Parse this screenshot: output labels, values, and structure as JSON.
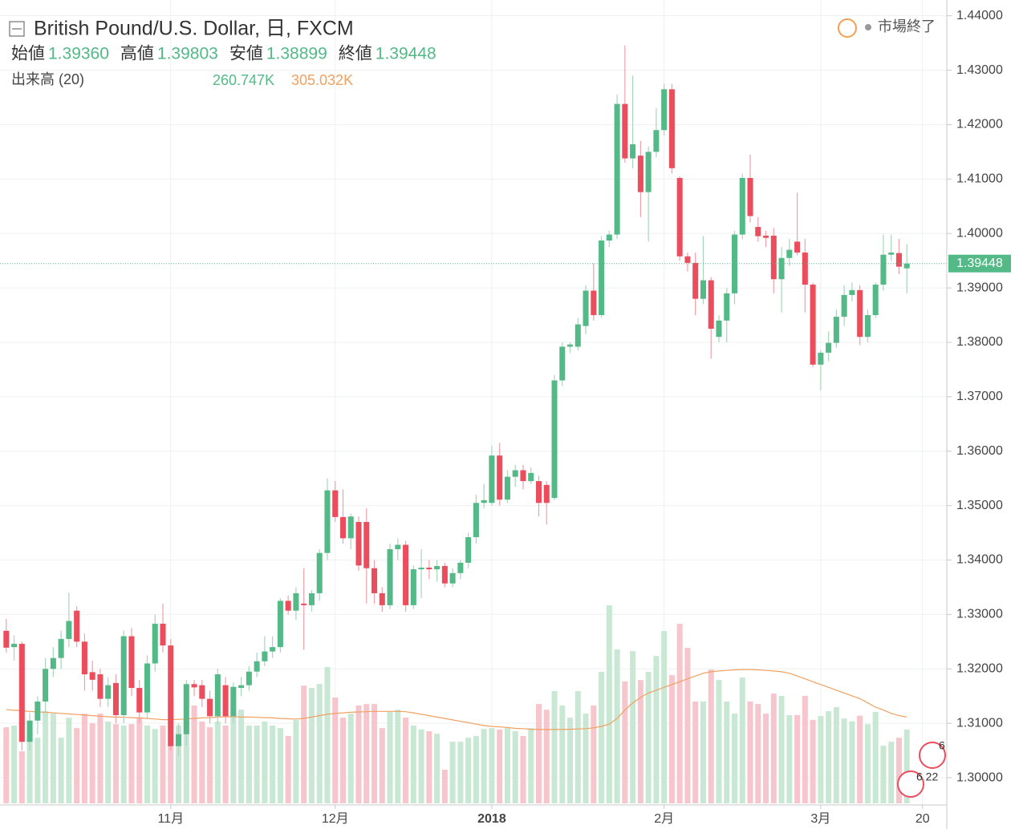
{
  "chart_data": {
    "type": "candlestick",
    "title": "British Pound/U.S. Dollar, 日, FXCM",
    "status": "市場終了",
    "ohlc_legend": [
      {
        "name": "始値",
        "value": "1.39360"
      },
      {
        "name": "高値",
        "value": "1.39803"
      },
      {
        "name": "安値",
        "value": "1.38899"
      },
      {
        "name": "終値",
        "value": "1.39448"
      }
    ],
    "up_color": "#53b987",
    "down_color": "#eb4d5c",
    "open": [
      1.327,
      1.324,
      1.3246,
      1.3066,
      1.3105,
      1.314,
      1.32,
      1.322,
      1.3255,
      1.3307,
      1.325,
      1.3194,
      1.319,
      1.3145,
      1.3174,
      1.3115,
      1.326,
      1.3165,
      1.312,
      1.321,
      1.3283,
      1.3243,
      1.3058,
      1.308,
      1.3172,
      1.317,
      1.3145,
      1.3113,
      1.317,
      1.3113,
      1.3165,
      1.317,
      1.3195,
      1.3214,
      1.3232,
      1.324,
      1.3325,
      1.3307,
      1.332,
      1.3317,
      1.3339,
      1.3413,
      1.3528,
      1.3479,
      1.344,
      1.347,
      1.347,
      1.3385,
      1.3339,
      1.3317,
      1.342,
      1.3428,
      1.3317,
      1.3383,
      1.3386,
      1.3383,
      1.3389,
      1.3357,
      1.3376,
      1.3395,
      1.3442,
      1.3505,
      1.3505,
      1.3592,
      1.3511,
      1.3553,
      1.3565,
      1.3545,
      1.3545,
      1.3538,
      1.3514,
      1.373,
      1.3792,
      1.3792,
      1.383,
      1.3895,
      1.385,
      1.3987,
      1.3998,
      1.4238,
      1.4138,
      1.4143,
      1.4076,
      1.415,
      1.419,
      1.4265,
      1.4102,
      1.3958,
      1.3946,
      1.388,
      1.3914,
      1.381,
      1.384,
      1.389,
      1.3998,
      1.4102,
      1.4012,
      1.3996,
      1.3996,
      1.3916,
      1.3955,
      1.3985,
      1.3965,
      1.3906,
      1.3759,
      1.3781,
      1.3799,
      1.3847,
      1.3887,
      1.3896,
      1.381,
      1.385,
      1.3906,
      1.3961,
      1.3964,
      1.3936
    ],
    "high": [
      1.3292,
      1.3262,
      1.325,
      1.312,
      1.315,
      1.322,
      1.324,
      1.327,
      1.334,
      1.3315,
      1.3265,
      1.3215,
      1.32,
      1.3185,
      1.319,
      1.327,
      1.3275,
      1.318,
      1.3225,
      1.33,
      1.332,
      1.3255,
      1.31,
      1.318,
      1.318,
      1.318,
      1.316,
      1.32,
      1.3185,
      1.3175,
      1.3185,
      1.3205,
      1.323,
      1.326,
      1.326,
      1.333,
      1.3335,
      1.335,
      1.3385,
      1.3345,
      1.342,
      1.355,
      1.3545,
      1.353,
      1.3485,
      1.348,
      1.3495,
      1.34,
      1.335,
      1.343,
      1.344,
      1.3435,
      1.339,
      1.342,
      1.34,
      1.34,
      1.3395,
      1.3385,
      1.34,
      1.345,
      1.352,
      1.354,
      1.361,
      1.3615,
      1.3565,
      1.3575,
      1.3575,
      1.357,
      1.3555,
      1.3545,
      1.374,
      1.38,
      1.38,
      1.3845,
      1.3905,
      1.3945,
      1.3995,
      1.4005,
      1.4255,
      1.4345,
      1.429,
      1.417,
      1.416,
      1.423,
      1.4275,
      1.4275,
      1.4105,
      1.3965,
      1.3965,
      1.3995,
      1.392,
      1.385,
      1.39,
      1.4005,
      1.411,
      1.4145,
      1.403,
      1.4005,
      1.401,
      1.3975,
      1.399,
      1.4075,
      1.399,
      1.391,
      1.3785,
      1.382,
      1.386,
      1.3905,
      1.391,
      1.3905,
      1.386,
      1.391,
      1.3998,
      1.3998,
      1.399,
      1.39803
    ],
    "low": [
      1.323,
      1.3215,
      1.305,
      1.305,
      1.308,
      1.312,
      1.3185,
      1.32,
      1.324,
      1.324,
      1.316,
      1.316,
      1.313,
      1.313,
      1.31,
      1.31,
      1.315,
      1.31,
      1.311,
      1.3195,
      1.323,
      1.305,
      1.304,
      1.306,
      1.315,
      1.313,
      1.31,
      1.31,
      1.31,
      1.31,
      1.315,
      1.316,
      1.3185,
      1.3205,
      1.322,
      1.323,
      1.33,
      1.329,
      1.3235,
      1.3305,
      1.3325,
      1.34,
      1.347,
      1.343,
      1.342,
      1.338,
      1.332,
      1.332,
      1.3305,
      1.331,
      1.34,
      1.3305,
      1.331,
      1.333,
      1.3365,
      1.336,
      1.335,
      1.335,
      1.3365,
      1.3385,
      1.343,
      1.3495,
      1.35,
      1.35,
      1.3505,
      1.3535,
      1.353,
      1.354,
      1.348,
      1.3465,
      1.351,
      1.372,
      1.378,
      1.3785,
      1.3815,
      1.384,
      1.3845,
      1.3975,
      1.399,
      1.413,
      1.412,
      1.403,
      1.3985,
      1.414,
      1.418,
      1.411,
      1.395,
      1.393,
      1.385,
      1.387,
      1.377,
      1.38,
      1.38,
      1.387,
      1.399,
      1.402,
      1.3985,
      1.3975,
      1.389,
      1.3855,
      1.394,
      1.396,
      1.3855,
      1.3755,
      1.3712,
      1.3765,
      1.379,
      1.383,
      1.3875,
      1.3795,
      1.38,
      1.3845,
      1.3895,
      1.395,
      1.3925,
      1.38899
    ],
    "close": [
      1.3239,
      1.3246,
      1.3066,
      1.3105,
      1.314,
      1.32,
      1.322,
      1.3255,
      1.3288,
      1.325,
      1.319,
      1.318,
      1.3145,
      1.317,
      1.3115,
      1.326,
      1.3165,
      1.312,
      1.321,
      1.3283,
      1.3243,
      1.3058,
      1.308,
      1.3172,
      1.3166,
      1.3145,
      1.3113,
      1.319,
      1.3113,
      1.3167,
      1.317,
      1.3195,
      1.3214,
      1.3232,
      1.324,
      1.3325,
      1.3307,
      1.3339,
      1.3317,
      1.3339,
      1.3413,
      1.3528,
      1.3479,
      1.344,
      1.348,
      1.339,
      1.3385,
      1.3339,
      1.3317,
      1.342,
      1.3428,
      1.3317,
      1.3383,
      1.3386,
      1.3383,
      1.3389,
      1.3357,
      1.3376,
      1.3395,
      1.3442,
      1.3505,
      1.351,
      1.3592,
      1.3511,
      1.3553,
      1.3565,
      1.3545,
      1.356,
      1.3505,
      1.3505,
      1.373,
      1.3792,
      1.3796,
      1.3833,
      1.3895,
      1.385,
      1.3987,
      1.3998,
      1.4238,
      1.4138,
      1.4164,
      1.4076,
      1.415,
      1.419,
      1.4265,
      1.412,
      1.3958,
      1.3946,
      1.388,
      1.3914,
      1.3825,
      1.384,
      1.389,
      1.3998,
      1.4102,
      1.4032,
      1.3995,
      1.3992,
      1.3916,
      1.3955,
      1.397,
      1.3965,
      1.3906,
      1.3759,
      1.3781,
      1.3799,
      1.3847,
      1.3887,
      1.3896,
      1.381,
      1.385,
      1.3906,
      1.3961,
      1.3965,
      1.3939,
      1.39448
    ],
    "volume": {
      "name": "出来高 (20)",
      "value_label": "260.747K",
      "ma_label": "305.032K",
      "ma_color": "#f0a060",
      "values": [
        269,
        275,
        184,
        227,
        232,
        326,
        317,
        232,
        303,
        266,
        317,
        283,
        317,
        289,
        280,
        275,
        280,
        303,
        275,
        263,
        275,
        374,
        275,
        289,
        346,
        289,
        269,
        289,
        275,
        331,
        331,
        275,
        275,
        289,
        275,
        266,
        238,
        295,
        416,
        408,
        422,
        482,
        374,
        303,
        317,
        346,
        351,
        351,
        266,
        323,
        331,
        303,
        275,
        261,
        255,
        246,
        119,
        218,
        218,
        232,
        238,
        263,
        266,
        261,
        266,
        255,
        238,
        266,
        351,
        331,
        397,
        346,
        303,
        397,
        317,
        346,
        465,
        700,
        544,
        431,
        538,
        436,
        465,
        521,
        609,
        453,
        635,
        550,
        360,
        360,
        473,
        436,
        360,
        317,
        445,
        360,
        351,
        317,
        388,
        380,
        312,
        312,
        380,
        295,
        309,
        326,
        340,
        300,
        290,
        310,
        280,
        323,
        204,
        218,
        232,
        260.747
      ],
      "ma_values": [
        331,
        329,
        327,
        325,
        323,
        322,
        320,
        318,
        316,
        314,
        312,
        310,
        308,
        306,
        305,
        304,
        303,
        302,
        300,
        298,
        296,
        296,
        297,
        298,
        300,
        302,
        303,
        305,
        306,
        306,
        305,
        305,
        304,
        303,
        302,
        300,
        299,
        298,
        300,
        305,
        310,
        315,
        318,
        320,
        322,
        323,
        324,
        325,
        325,
        325,
        325,
        324,
        320,
        315,
        310,
        305,
        300,
        295,
        290,
        285,
        280,
        275,
        272,
        270,
        268,
        265,
        264,
        262,
        261,
        261,
        261,
        261,
        262,
        263,
        264,
        267,
        272,
        280,
        300,
        330,
        355,
        375,
        390,
        400,
        410,
        420,
        430,
        440,
        450,
        460,
        465,
        468,
        470,
        472,
        473,
        473,
        472,
        470,
        468,
        465,
        460,
        450,
        440,
        430,
        420,
        410,
        400,
        390,
        380,
        370,
        355,
        340,
        330,
        318,
        310,
        305.032
      ]
    },
    "last_price_label": "1.39448",
    "ylim": [
      1.295,
      1.4429
    ],
    "yticks": [
      {
        "value": 1.3,
        "label": "1.30000"
      },
      {
        "value": 1.31,
        "label": "1.31000"
      },
      {
        "value": 1.32,
        "label": "1.32000"
      },
      {
        "value": 1.33,
        "label": "1.33000"
      },
      {
        "value": 1.34,
        "label": "1.34000"
      },
      {
        "value": 1.35,
        "label": "1.35000"
      },
      {
        "value": 1.36,
        "label": "1.36000"
      },
      {
        "value": 1.37,
        "label": "1.37000"
      },
      {
        "value": 1.38,
        "label": "1.38000"
      },
      {
        "value": 1.39,
        "label": "1.39000"
      },
      {
        "value": 1.4,
        "label": "1.40000"
      },
      {
        "value": 1.41,
        "label": "1.41000"
      },
      {
        "value": 1.42,
        "label": "1.42000"
      },
      {
        "value": 1.43,
        "label": "1.43000"
      },
      {
        "value": 1.44,
        "label": "1.44000"
      }
    ],
    "xlim": [
      -0.8,
      120.1
    ],
    "xticks": [
      {
        "value": 21,
        "label": "11月"
      },
      {
        "value": 42,
        "label": "12月"
      },
      {
        "value": 62,
        "label": "2018"
      },
      {
        "value": 84,
        "label": "2月"
      },
      {
        "value": 104,
        "label": "3月"
      },
      {
        "value": 117,
        "label": "20"
      }
    ],
    "events": [
      "6",
      "6 22"
    ],
    "grid": true
  }
}
